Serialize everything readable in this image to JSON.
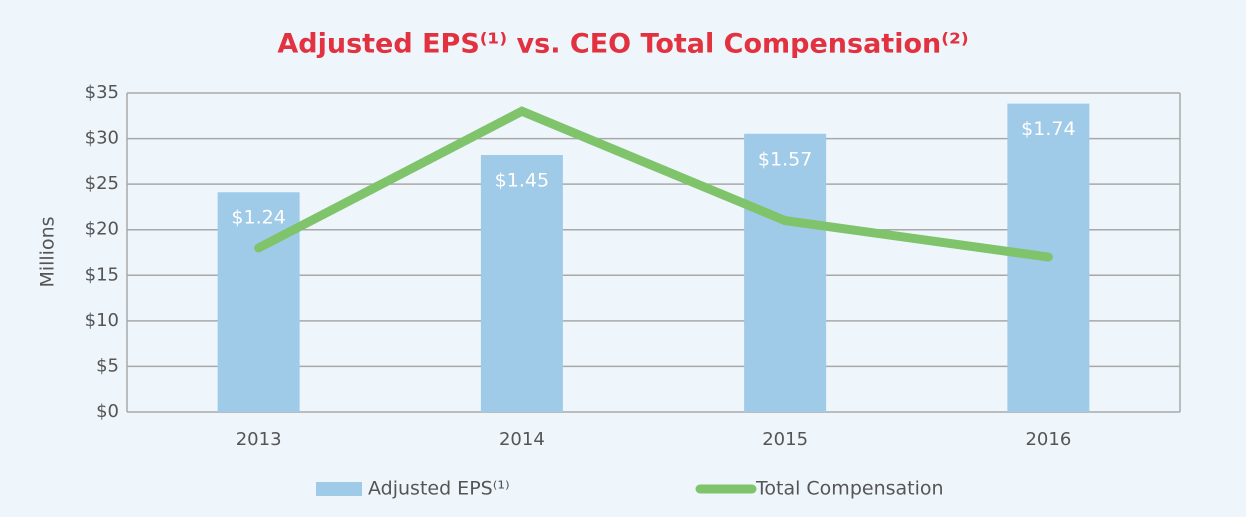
{
  "chart_data": {
    "type": "bar_line",
    "title": "Adjusted EPS⁽¹⁾ vs. CEO Total Compensation⁽²⁾",
    "y_label": "Millions",
    "categories": [
      "2013",
      "2014",
      "2015",
      "2016"
    ],
    "series": [
      {
        "name": "Adjusted EPS⁽¹⁾",
        "type": "bar",
        "axis": "y2",
        "color": "#9fcbe8",
        "values": [
          1.24,
          1.45,
          1.57,
          1.74
        ],
        "value_labels": [
          "$1.24",
          "$1.45",
          "$1.57",
          "$1.74"
        ]
      },
      {
        "name": "Total Compensation",
        "type": "line",
        "color": "#7fc36b",
        "values": [
          18,
          33,
          21,
          17
        ]
      }
    ],
    "ylim": [
      0,
      35
    ],
    "yticks": [
      {
        "value": 0,
        "label": "$0"
      },
      {
        "value": 5,
        "label": "$5"
      },
      {
        "value": 10,
        "label": "$10"
      },
      {
        "value": 15,
        "label": "$15"
      },
      {
        "value": 20,
        "label": "$20"
      },
      {
        "value": 25,
        "label": "$25"
      },
      {
        "value": 30,
        "label": "$30"
      },
      {
        "value": 35,
        "label": "$35"
      }
    ],
    "y2lim": [
      0,
      1.8
    ],
    "grid": true
  }
}
